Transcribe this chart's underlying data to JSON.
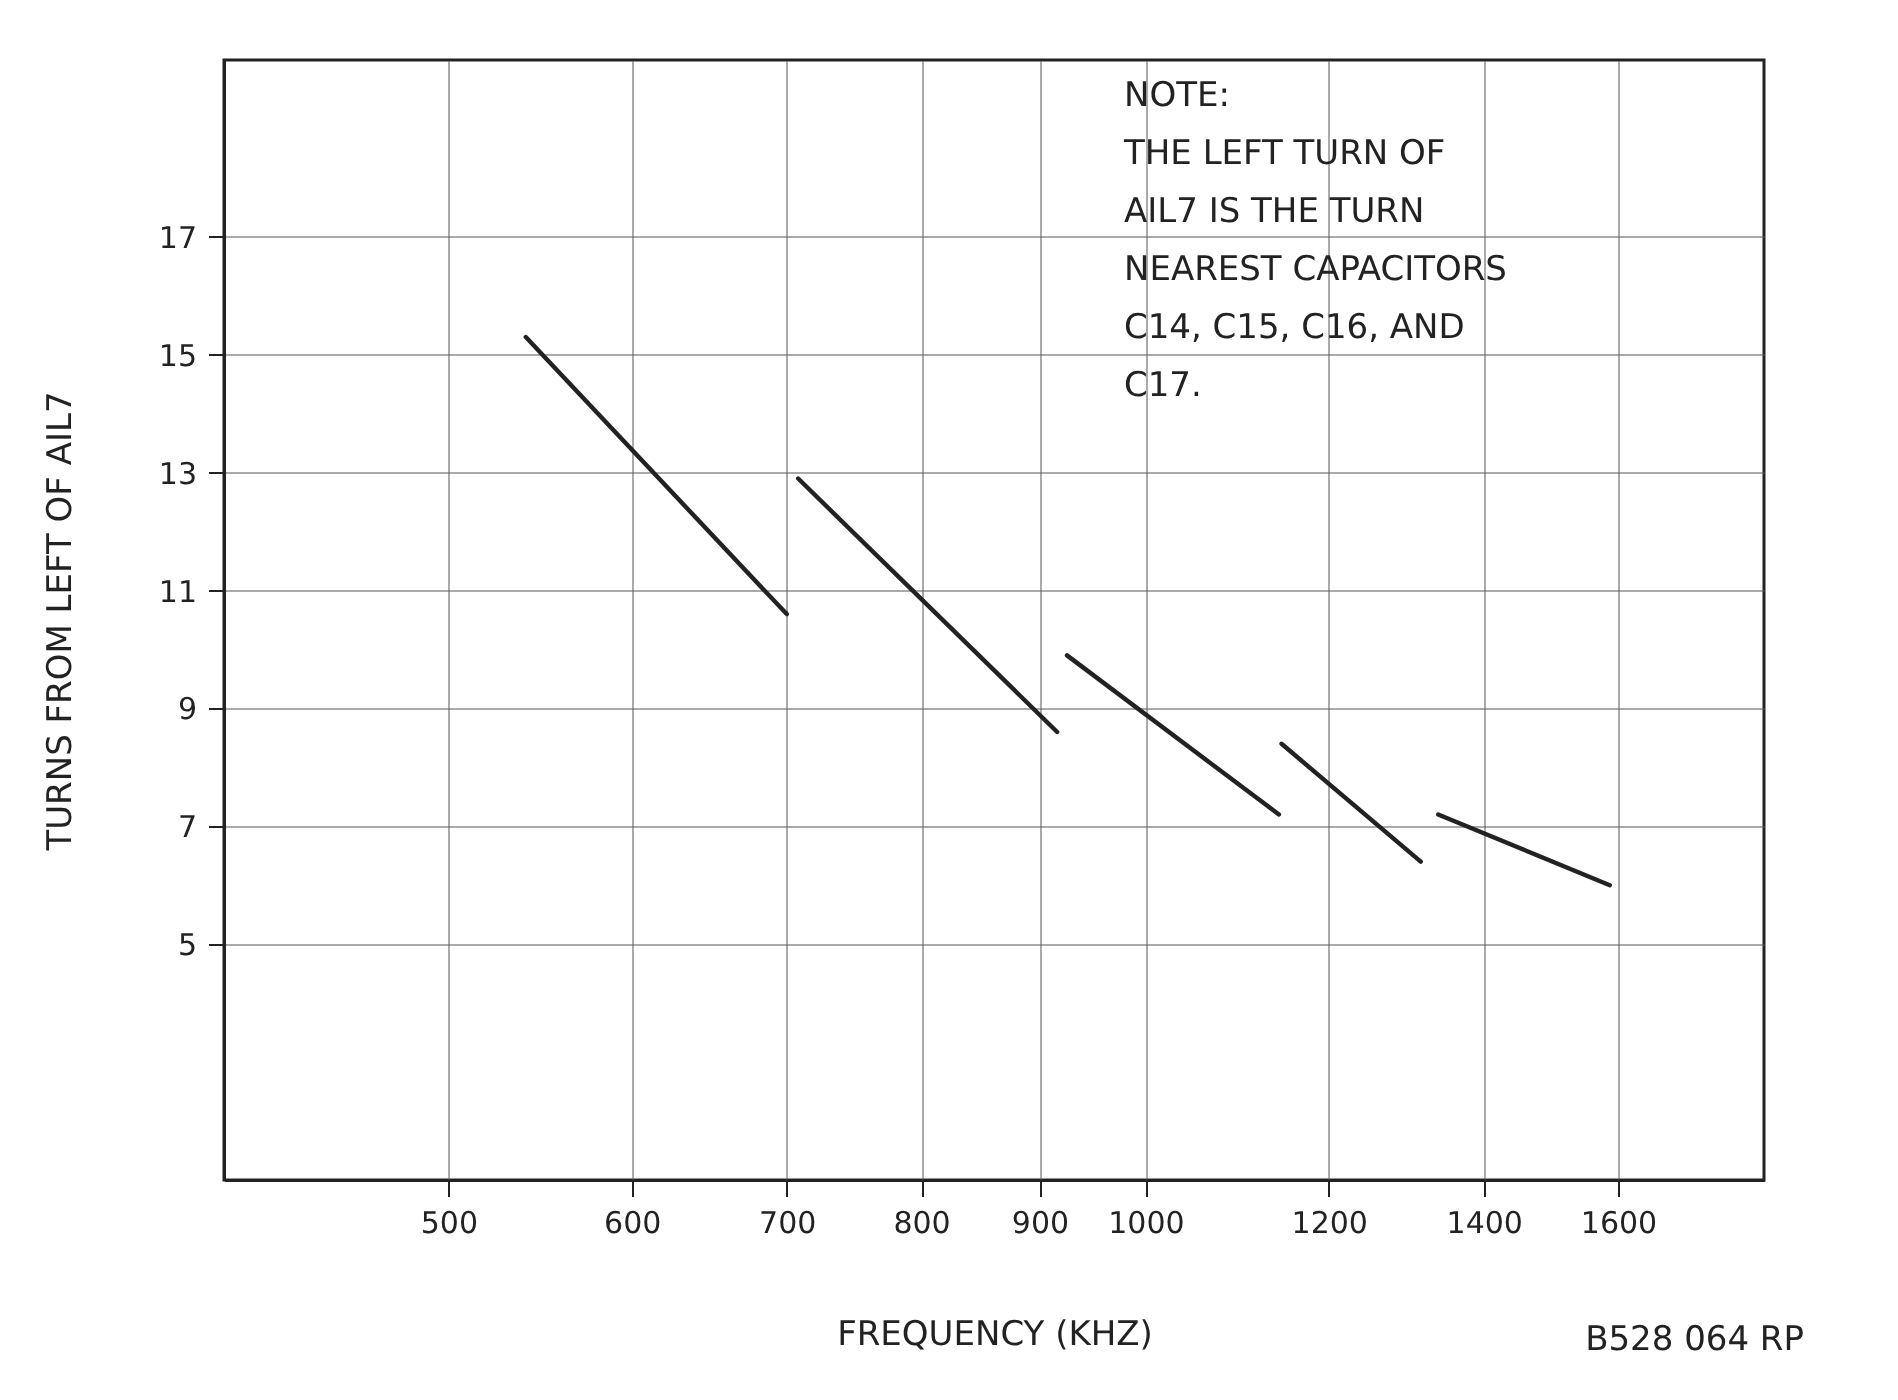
{
  "chart_data": {
    "type": "line",
    "xlabel": "FREQUENCY (KHZ)",
    "ylabel": "TURNS FROM LEFT OF AIL7",
    "annotations": [
      "NOTE:\nTHE LEFT TURN OF\nAIL7 IS THE TURN\nNEAREST CAPACITORS\nC14, C15, C16, AND\nC17.",
      "B528 064 RP"
    ],
    "log": "x",
    "grid": true,
    "xlim": [
      400,
      1850
    ],
    "xticks": [
      500,
      600,
      700,
      800,
      900,
      1000,
      1200,
      1400,
      1600
    ],
    "ylim": [
      1,
      20
    ],
    "yticks": [
      5,
      7,
      9,
      11,
      13,
      15,
      17
    ],
    "series": [
      {
        "color": "#222222",
        "x": [
          540,
          700
        ],
        "values": [
          15.3,
          10.6
        ]
      },
      {
        "color": "#222222",
        "x": [
          708,
          916
        ],
        "values": [
          12.9,
          8.6
        ]
      },
      {
        "color": "#222222",
        "x": [
          925,
          1142
        ],
        "values": [
          9.9,
          7.2
        ]
      },
      {
        "color": "#222222",
        "x": [
          1145,
          1315
        ],
        "values": [
          8.4,
          6.4
        ]
      },
      {
        "color": "#222222",
        "x": [
          1338,
          1587
        ],
        "values": [
          7.2,
          6.0
        ]
      }
    ]
  }
}
